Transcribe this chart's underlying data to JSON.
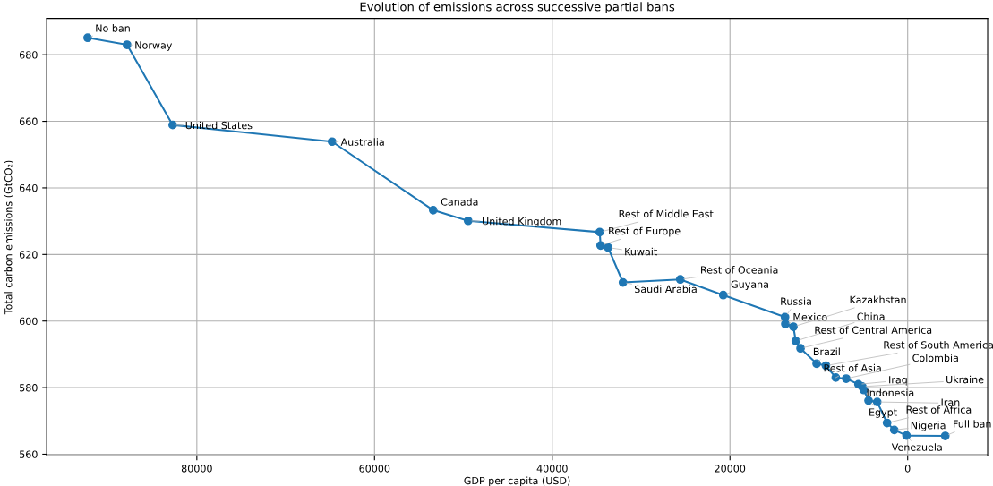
{
  "chart_data": {
    "type": "line",
    "title": "Evolution of emissions across successive partial bans",
    "xlabel": "GDP per capita (USD)",
    "ylabel": "Total carbon emissions (GtCO₂)",
    "x": [
      92287,
      87854,
      82716,
      64782,
      53397,
      49468,
      34658,
      34557,
      33721,
      32039,
      25591,
      20755,
      13803,
      13770,
      12864,
      12594,
      12057,
      10247,
      9199,
      8090,
      6918,
      5541,
      5105,
      4937,
      4403,
      3426,
      2317,
      1511,
      131,
      -4232
    ],
    "series": [
      {
        "color": "#1f77b4",
        "values": [
          685.1,
          683.0,
          658.9,
          653.9,
          633.3,
          630.1,
          626.7,
          622.7,
          622.1,
          611.6,
          612.5,
          607.8,
          601.2,
          599.1,
          598.3,
          594.0,
          591.8,
          587.2,
          586.6,
          583.0,
          582.7,
          581.0,
          580.3,
          579.3,
          576.1,
          575.7,
          569.4,
          567.3,
          565.6,
          565.5
        ]
      }
    ],
    "marker": "circle",
    "line_style": "solid",
    "grid": true,
    "xlim": [
      96900,
      -9000
    ],
    "ylim": [
      559.5,
      690.9
    ],
    "xticks": [
      0,
      20000,
      40000,
      60000,
      80000
    ],
    "yticks": [
      560,
      580,
      600,
      620,
      640,
      660,
      680
    ],
    "annotations": [
      {
        "text": "No ban",
        "x": 92287,
        "y": 685.1
      },
      {
        "text": "Norway",
        "x": 87854,
        "y": 683.0
      },
      {
        "text": "United States",
        "x": 82716,
        "y": 658.9
      },
      {
        "text": "Australia",
        "x": 64782,
        "y": 653.9
      },
      {
        "text": "Canada",
        "x": 53397,
        "y": 633.3
      },
      {
        "text": "United Kingdom",
        "x": 49468,
        "y": 630.1
      },
      {
        "text": "Rest of Middle East",
        "x": 34658,
        "y": 626.7
      },
      {
        "text": "Rest of Europe",
        "x": 34557,
        "y": 622.7
      },
      {
        "text": "Kuwait",
        "x": 33721,
        "y": 622.1
      },
      {
        "text": "Saudi Arabia",
        "x": 32039,
        "y": 611.6
      },
      {
        "text": "Rest of Oceania",
        "x": 25591,
        "y": 612.5
      },
      {
        "text": "Guyana",
        "x": 20755,
        "y": 607.8
      },
      {
        "text": "Russia",
        "x": 13803,
        "y": 601.2
      },
      {
        "text": "Mexico",
        "x": 13770,
        "y": 599.1
      },
      {
        "text": "Kazakhstan",
        "x": 12864,
        "y": 598.3
      },
      {
        "text": "China",
        "x": 12594,
        "y": 594.0
      },
      {
        "text": "Rest of Central America",
        "x": 12057,
        "y": 591.8
      },
      {
        "text": "Brazil",
        "x": 10247,
        "y": 587.2
      },
      {
        "text": "Rest of South America",
        "x": 9199,
        "y": 586.6
      },
      {
        "text": "Rest of Asia",
        "x": 8090,
        "y": 583.0
      },
      {
        "text": "Colombia",
        "x": 6918,
        "y": 582.7
      },
      {
        "text": "Iraq",
        "x": 5541,
        "y": 581.0
      },
      {
        "text": "Ukraine",
        "x": 5105,
        "y": 580.3
      },
      {
        "text": "Indonesia",
        "x": 4937,
        "y": 579.3
      },
      {
        "text": "Egypt",
        "x": 4403,
        "y": 576.1
      },
      {
        "text": "Iran",
        "x": 3426,
        "y": 575.7
      },
      {
        "text": "Rest of Africa",
        "x": 2317,
        "y": 569.4
      },
      {
        "text": "Nigeria",
        "x": 1511,
        "y": 567.3
      },
      {
        "text": "Venezuela",
        "x": 131,
        "y": 565.6
      },
      {
        "text": "Full ban",
        "x": -4232,
        "y": 565.5
      }
    ]
  }
}
